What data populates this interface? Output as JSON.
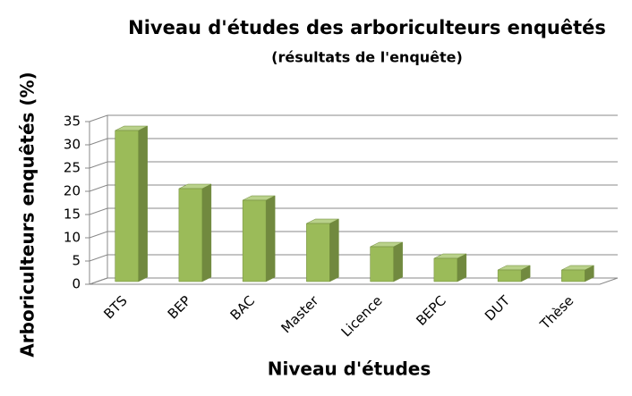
{
  "chart_data": {
    "type": "bar3d",
    "title": "Niveau d'études des arboriculteurs enquêtés",
    "subtitle": "(résultats de l'enquête)",
    "x_label": "Niveau d'études",
    "y_label": "Arboriculteurs enquêtés (%)",
    "categories": [
      "BTS",
      "BEP",
      "BAC",
      "Master",
      "Licence",
      "BEPC",
      "DUT",
      "Thèse"
    ],
    "values": [
      32.5,
      20,
      17.5,
      12.5,
      7.5,
      5,
      2.5,
      2.5
    ],
    "color": "#9bbb59",
    "ylim": [
      0,
      35
    ],
    "yticks": [
      0,
      5,
      10,
      15,
      20,
      25,
      30,
      35
    ],
    "grid": true
  }
}
